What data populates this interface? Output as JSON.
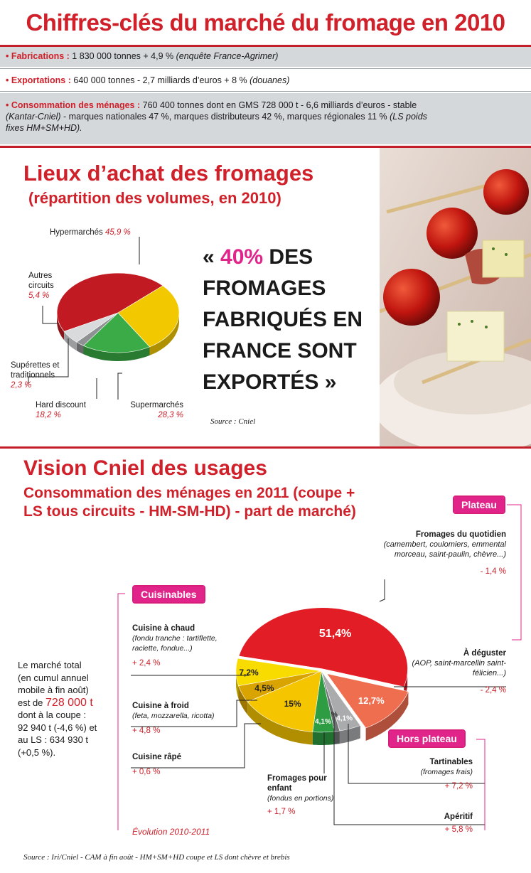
{
  "header": {
    "title": "Chiffres-clés du marché du fromage en 2010"
  },
  "key_figures": [
    {
      "label": "• Fabrications :",
      "text": " 1 830 000 tonnes + 4,9 % ",
      "source": "(enquête France-Agrimer)"
    },
    {
      "label": "• Exportations :",
      "text": " 640 000 tonnes - 2,7 milliards d’euros + 8 % ",
      "source": "(douanes)"
    },
    {
      "label": "• Consommation des ménages :",
      "text": " 760 400 tonnes dont en GMS 728 000 t - 6,6 milliards d’euros - stable",
      "line2_source": "(Kantar-Cniel)",
      "line2_text": " - marques nationales 47 %, marques distributeurs 42 %, marques régionales 11 % ",
      "line2_tail": "(LS poids",
      "line3": "fixes HM+SM+HD)."
    }
  ],
  "section1": {
    "title": "Lieux d’achat des fromages",
    "subtitle": "(répartition des volumes, en 2010)",
    "quote_open": "« ",
    "quote_highlight": "40%",
    "quote_line1_rest": " DES",
    "quote_line2": "FROMAGES",
    "quote_line3": "FABRIQUÉS EN",
    "quote_line4": "FRANCE SONT",
    "quote_line5": "EXPORTÉS »",
    "source": "Source : Cniel",
    "photo_icon": "cheese-tomato-skewers-photo"
  },
  "section2": {
    "title": "Vision Cniel des usages",
    "subtitle_line1": "Consommation des ménages en 2011 (coupe +",
    "subtitle_line2": "LS tous circuits - HM-SM-HD) - part de marché)",
    "badges": {
      "plateau": "Plateau",
      "cuisinables": "Cuisinables",
      "hors_plateau": "Hors plateau"
    },
    "market_text": [
      "Le marché total",
      "(en cumul annuel",
      "mobile à fin août)",
      "est de ",
      "728 000 t",
      "dont à la coupe :",
      "92 940 t (-4,6 %) et",
      "au LS : 634 930 t",
      "(+0,5 %)."
    ],
    "evolution_label": "Évolution 2010-2011",
    "source": "Source : Iri/Cniel - CAM à fin août - HM+SM+HD coupe et LS dont chèvre et brebis"
  },
  "chart_data": [
    {
      "type": "pie",
      "title": "Lieux d’achat des fromages",
      "subtitle": "(répartition des volumes, en 2010)",
      "series": [
        {
          "name": "Hypermarchés",
          "value": 45.9,
          "label": "45,9 %",
          "color": "#c21a22"
        },
        {
          "name": "Supermarchés",
          "value": 28.3,
          "label": "28,3 %",
          "color": "#f2c800"
        },
        {
          "name": "Hard discount",
          "value": 18.2,
          "label": "18,2 %",
          "color": "#3aab46"
        },
        {
          "name": "Supérettes et traditionnels",
          "value": 2.3,
          "label": "2,3 %",
          "color": "#8f9294"
        },
        {
          "name": "Autres circuits",
          "value": 5.4,
          "label": "5,4 %",
          "color": "#d8dadb"
        }
      ]
    },
    {
      "type": "pie",
      "title": "Vision Cniel des usages",
      "series": [
        {
          "name": "Fromages du quotidien",
          "detail": "(camembert, coulomiers, emmental morceau, saint-paulin, chèvre...)",
          "value": 51.4,
          "label": "51,4%",
          "evolution": "- 1,4 %",
          "group": "Plateau",
          "color": "#e31d25"
        },
        {
          "name": "À déguster",
          "detail": "(AOP, saint-marcellin saint-félicien...)",
          "value": 12.7,
          "label": "12,7%",
          "evolution": "- 2,4 %",
          "group": "Plateau",
          "color": "#f06e50"
        },
        {
          "name": "Tartinables",
          "detail": "(fromages frais)",
          "value": 4.1,
          "label": "4,1%",
          "evolution": "+ 7,2 %",
          "group": "Hors plateau",
          "color": "#a9abad"
        },
        {
          "name": "Apéritif",
          "detail": "",
          "value": 1,
          "label": "1%",
          "evolution": "+ 5,8 %",
          "group": "Hors plateau",
          "color": "#6f7274"
        },
        {
          "name": "Fromages pour enfant",
          "detail": "(fondus en portions)",
          "value": 4.1,
          "label": "4,1%",
          "evolution": "+ 1,7 %",
          "group": "",
          "color": "#2e9c42"
        },
        {
          "name": "Cuisine râpé",
          "detail": "",
          "value": 15,
          "label": "15%",
          "evolution": "+ 0,6 %",
          "group": "Cuisinables",
          "color": "#f5c500"
        },
        {
          "name": "Cuisine à froid",
          "detail": "(feta, mozzarella, ricotta)",
          "value": 4.5,
          "label": "4,5%",
          "evolution": "+ 4,8 %",
          "group": "Cuisinables",
          "color": "#d9a300"
        },
        {
          "name": "Cuisine à chaud",
          "detail": "(fondu tranche : tartiflette, raclette, fondue...)",
          "value": 7.2,
          "label": "7,2%",
          "evolution": "+ 2,4 %",
          "group": "Cuisinables",
          "color": "#f8dc00"
        }
      ]
    }
  ]
}
